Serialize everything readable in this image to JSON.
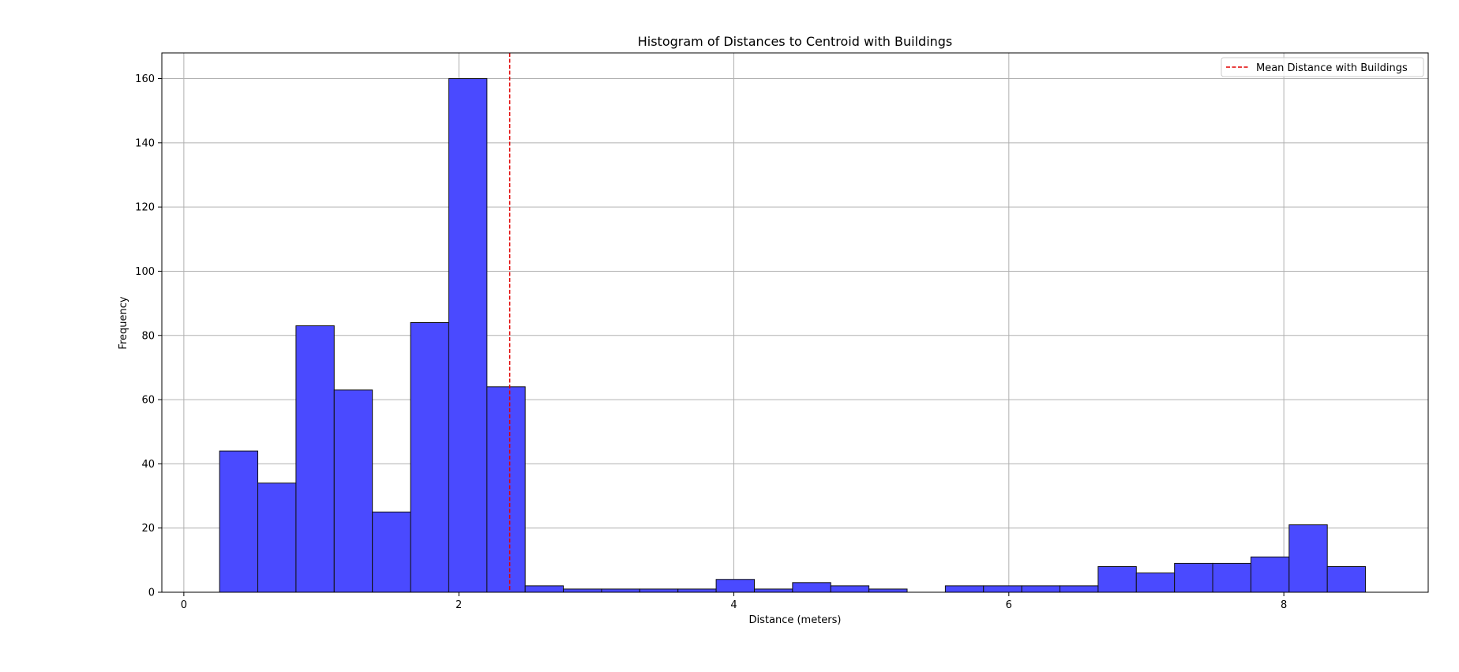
{
  "colors": {
    "bar_fill": "#4a4aff",
    "bar_edge": "#111111",
    "mean_line": "#e00000",
    "grid": "#b0b0b0",
    "axis": "#000000"
  },
  "chart_data": {
    "type": "bar",
    "title": "Histogram of Distances to Centroid with Buildings",
    "xlabel": "Distance (meters)",
    "ylabel": "Frequency",
    "xlim": [
      -0.16,
      9.05
    ],
    "ylim": [
      0,
      168
    ],
    "x_ticks": [
      0,
      2,
      4,
      6,
      8
    ],
    "y_ticks": [
      0,
      20,
      40,
      60,
      80,
      100,
      120,
      140,
      160
    ],
    "grid": true,
    "legend": {
      "position": "top-right",
      "entries": [
        "Mean Distance with Buildings"
      ]
    },
    "bins": {
      "start": 0.26,
      "width": 0.2778,
      "counts": [
        44,
        34,
        83,
        63,
        25,
        84,
        160,
        64,
        2,
        1,
        1,
        1,
        1,
        4,
        1,
        3,
        2,
        1,
        0,
        2,
        2,
        2,
        2,
        8,
        6,
        9,
        9,
        11,
        21,
        8
      ]
    },
    "mean_line": {
      "x": 2.37,
      "label": "Mean Distance with Buildings",
      "style": "dashed"
    }
  }
}
